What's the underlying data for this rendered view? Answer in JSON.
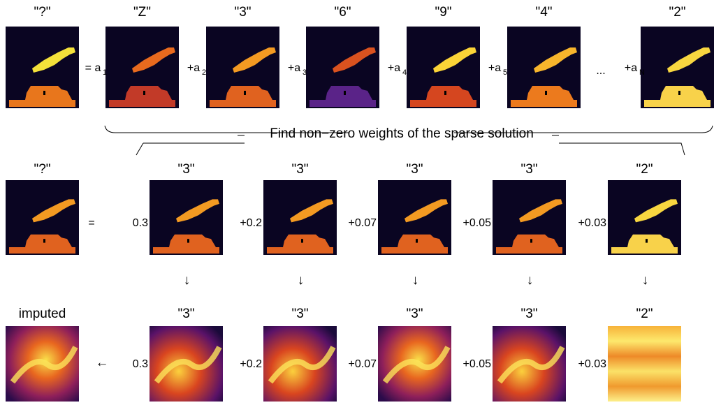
{
  "row1": {
    "labels": [
      "\"?\"",
      "\"Z\"",
      "\"3\"",
      "\"6\"",
      "\"9\"",
      "\"4\"",
      "\"2\""
    ],
    "terms": [
      {
        "a": "= a",
        "sub": "1"
      },
      {
        "a": "+a",
        "sub": "2"
      },
      {
        "a": "+a",
        "sub": "3"
      },
      {
        "a": "+a",
        "sub": "4"
      },
      {
        "a": "+a",
        "sub": "5"
      },
      {
        "a": "+a",
        "sub": "N"
      }
    ],
    "ellipsis": "..."
  },
  "caption": "Find non−zero weights of the sparse solution",
  "row2": {
    "labels": [
      "\"?\"",
      "\"3\"",
      "\"3\"",
      "\"3\"",
      "\"3\"",
      "\"2\""
    ],
    "equals": "=",
    "weights": [
      "0.3",
      "+0.2",
      "+0.07",
      "+0.05",
      "+0.03"
    ]
  },
  "arrows": [
    "↓",
    "↓",
    "↓",
    "↓",
    "↓"
  ],
  "row3": {
    "labels": [
      "imputed",
      "\"3\"",
      "\"3\"",
      "\"3\"",
      "\"3\"",
      "\"2\""
    ],
    "arrow": "←",
    "weights": [
      "0.3",
      "+0.2",
      "+0.07",
      "+0.05",
      "+0.03"
    ]
  }
}
